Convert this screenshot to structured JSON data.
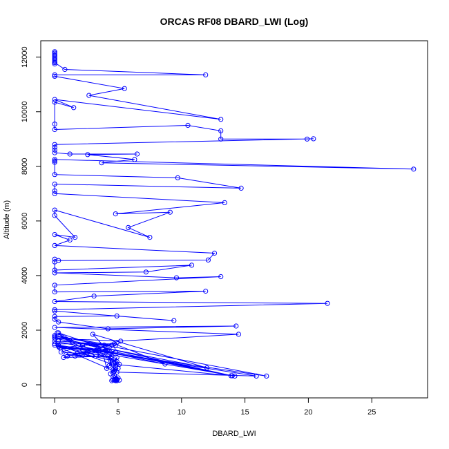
{
  "chart_data": {
    "type": "scatter",
    "title": "ORCAS RF08 DBARD_LWI (Log)",
    "xlabel": "DBARD_LWI",
    "ylabel": "Altitude (m)",
    "xlim": [
      -1.1,
      29.4
    ],
    "ylim": [
      -480,
      12600
    ],
    "x_ticks": [
      0,
      5,
      10,
      15,
      20,
      25
    ],
    "y_ticks": [
      0,
      2000,
      4000,
      6000,
      8000,
      10000,
      12000
    ],
    "x_tick_labels": [
      "0",
      "5",
      "10",
      "15",
      "20",
      "25"
    ],
    "y_tick_labels": [
      "0",
      "2000",
      "4000",
      "6000",
      "8000",
      "10000",
      "12000"
    ],
    "grid": false,
    "legend": "none",
    "color": "#0000ff",
    "series": [
      {
        "mode": "lines+markers",
        "x": [
          0.0,
          0.0,
          0.0,
          0.0,
          0.0,
          0.0,
          0.0,
          0.0,
          0.0,
          0.0,
          0.0,
          0.8,
          11.9,
          0.0,
          0.0,
          5.5,
          2.7,
          13.1,
          0.0,
          1.5,
          0.0,
          0.0,
          0.0,
          10.5,
          13.1,
          13.1,
          19.9,
          20.4,
          0.0,
          0.0,
          0.0,
          0.0,
          1.2,
          6.5,
          2.6,
          6.3,
          3.7,
          28.3,
          0.0,
          0.0,
          0.0,
          0.0,
          9.7,
          14.7,
          0.0,
          0.0,
          0.0,
          13.4,
          4.8,
          9.1,
          5.8,
          7.5,
          0.0,
          0.0,
          1.6,
          0.0,
          1.2,
          0.0,
          12.6,
          12.1,
          0.3,
          0.0,
          0.0,
          0.0,
          10.8,
          7.2,
          0.0,
          9.6,
          13.1,
          0.0,
          0.0,
          11.9,
          3.1,
          0.0,
          21.5,
          0.0,
          0.0,
          9.4,
          4.9,
          0.0,
          0.0,
          0.3,
          4.2,
          14.3,
          0.0,
          14.5,
          5.2,
          0.0,
          12.0,
          3.0,
          4.2,
          0.0,
          16.7,
          0.3,
          15.9,
          4.9,
          0.0,
          14.2,
          4.5,
          0.0,
          4.7,
          8.7,
          0.0,
          13.9,
          0.0,
          14.0,
          4.8,
          0.5,
          2.2,
          4.8,
          0.3,
          3.9,
          0.0,
          4.5,
          1.0,
          4.2,
          0.3,
          3.6,
          0.5,
          2.8,
          4.5,
          0.7,
          4.9,
          1.8,
          4.0,
          0.3,
          4.4,
          0.9,
          3.5,
          0.4,
          4.6,
          1.6,
          3.2,
          0.2,
          2.5,
          4.4,
          4.5,
          4.3,
          4.8,
          3.8,
          4.1,
          4.9,
          4.6,
          5.1,
          4.2,
          4.7,
          4.9,
          4.4,
          4.8,
          4.6,
          5.0,
          4.6,
          4.7,
          5.0,
          4.8,
          4.9,
          4.5,
          4.7,
          4.9,
          4.8,
          4.6,
          5.1,
          4.8,
          4.9
        ],
        "y": [
          12200,
          12150,
          12100,
          12050,
          12000,
          11950,
          11900,
          11850,
          11800,
          11750,
          11800,
          11550,
          11350,
          11350,
          11300,
          10850,
          10600,
          9720,
          10450,
          10150,
          10350,
          9550,
          9350,
          9500,
          9300,
          9000,
          9000,
          9010,
          8800,
          8700,
          8600,
          8500,
          8450,
          8450,
          8430,
          8250,
          8130,
          7900,
          8250,
          8200,
          8150,
          7700,
          7580,
          7200,
          7350,
          7100,
          7000,
          6670,
          6260,
          6320,
          5760,
          5400,
          6400,
          6200,
          5400,
          5500,
          5300,
          5100,
          4820,
          4570,
          4550,
          4600,
          4500,
          4200,
          4380,
          4130,
          4100,
          3920,
          3960,
          3650,
          3400,
          3430,
          3250,
          3050,
          2980,
          2750,
          2700,
          2350,
          2520,
          2500,
          2400,
          2300,
          2050,
          2150,
          2100,
          1850,
          1600,
          1700,
          620,
          1850,
          1250,
          1800,
          320,
          1450,
          320,
          460,
          1450,
          320,
          760,
          1500,
          1500,
          760,
          1600,
          330,
          1750,
          330,
          1200,
          1350,
          1450,
          1450,
          1600,
          1450,
          1800,
          1450,
          1050,
          1300,
          1900,
          1100,
          1200,
          1500,
          1050,
          1000,
          1550,
          1150,
          1250,
          1400,
          1000,
          1100,
          1250,
          1350,
          1300,
          1050,
          1050,
          1900,
          1100,
          900,
          950,
          700,
          820,
          1150,
          600,
          1000,
          550,
          750,
          1050,
          500,
          850,
          400,
          650,
          450,
          600,
          300,
          350,
          250,
          200,
          180,
          150,
          170,
          200,
          150,
          180,
          170,
          160,
          150
        ]
      }
    ]
  }
}
